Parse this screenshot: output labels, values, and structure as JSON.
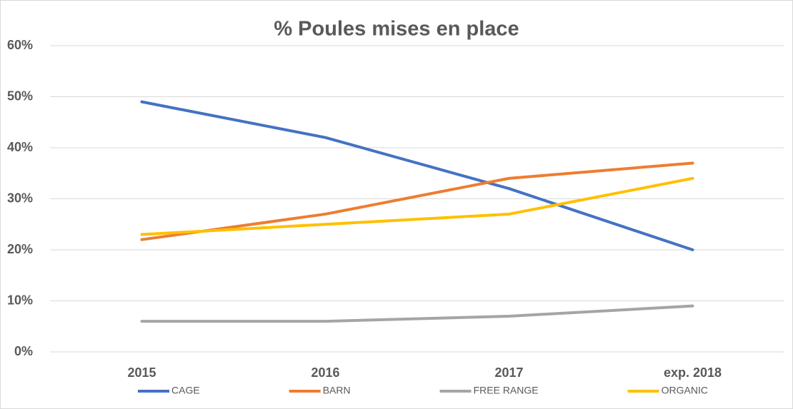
{
  "chart_data": {
    "type": "line",
    "title": "% Poules mises en place",
    "categories": [
      "2015",
      "2016",
      "2017",
      "exp. 2018"
    ],
    "series": [
      {
        "name": "CAGE",
        "color": "#4472c4",
        "values": [
          49,
          42,
          32,
          20
        ]
      },
      {
        "name": "BARN",
        "color": "#ed7d31",
        "values": [
          22,
          27,
          34,
          37
        ]
      },
      {
        "name": "FREE RANGE",
        "color": "#a5a5a5",
        "values": [
          6,
          6,
          7,
          9
        ]
      },
      {
        "name": "ORGANIC",
        "color": "#ffc000",
        "values": [
          23,
          25,
          27,
          34
        ]
      }
    ],
    "ylim": [
      0,
      60
    ],
    "yticks": [
      {
        "value": 0,
        "label": "0%"
      },
      {
        "value": 10,
        "label": "10%"
      },
      {
        "value": 20,
        "label": "20%"
      },
      {
        "value": 30,
        "label": "30%"
      },
      {
        "value": 40,
        "label": "40%"
      },
      {
        "value": 50,
        "label": "50%"
      },
      {
        "value": 60,
        "label": "60%"
      }
    ],
    "grid": true,
    "legend": "bottom"
  }
}
